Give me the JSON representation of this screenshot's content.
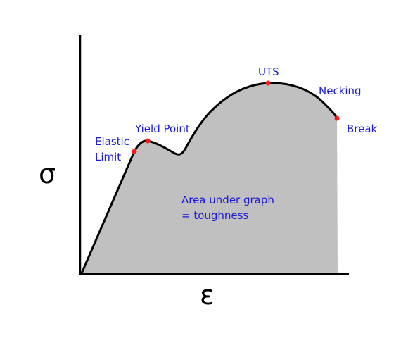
{
  "axes": {
    "y_symbol": "σ",
    "x_symbol": "ε"
  },
  "annotations": {
    "elastic_limit_line1": "Elastic",
    "elastic_limit_line2": "Limit",
    "yield_point": "Yield Point",
    "uts": "UTS",
    "necking": "Necking",
    "break": "Break",
    "area_line1": "Area under graph",
    "area_line2": "= toughness"
  },
  "colors": {
    "curve": "#000000",
    "area_fill": "#c0c0c0",
    "points": "#ff1a1a",
    "labels": "#1a1ad6"
  }
}
